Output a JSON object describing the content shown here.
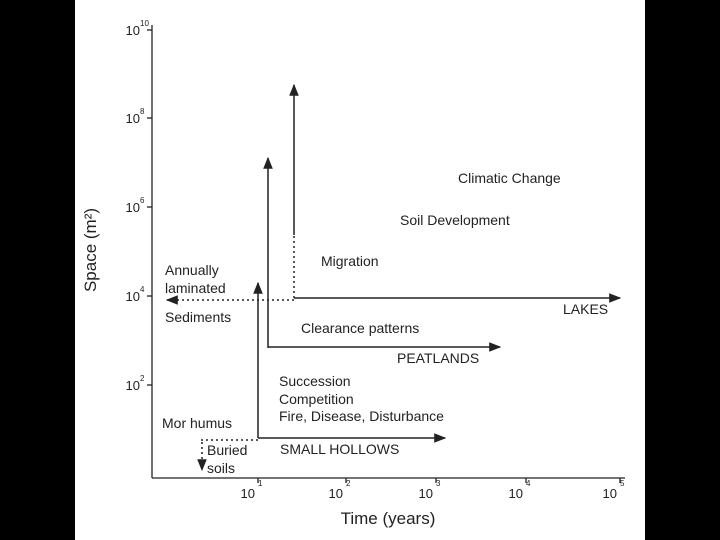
{
  "axes": {
    "y": {
      "label": "Space (m²)",
      "ticks": [
        {
          "base": "10",
          "exp": "10"
        },
        {
          "base": "10",
          "exp": "8"
        },
        {
          "base": "10",
          "exp": "6"
        },
        {
          "base": "10",
          "exp": "4"
        },
        {
          "base": "10",
          "exp": "2"
        }
      ]
    },
    "x": {
      "label": "Time (years)",
      "ticks": [
        {
          "base": "10",
          "exp": "1"
        },
        {
          "base": "10",
          "exp": "2"
        },
        {
          "base": "10",
          "exp": "3"
        },
        {
          "base": "10",
          "exp": "4"
        },
        {
          "base": "10",
          "exp": "5"
        }
      ]
    }
  },
  "labels": [
    "Climatic Change",
    "Soil Development",
    "Migration",
    "Annually",
    "laminated",
    "Sediments",
    "LAKES",
    "Clearance patterns",
    "PEATLANDS",
    "Succession",
    "Competition",
    "Fire, Disease, Disturbance",
    "Mor humus",
    "SMALL HOLLOWS",
    "Buried",
    "soils"
  ]
}
